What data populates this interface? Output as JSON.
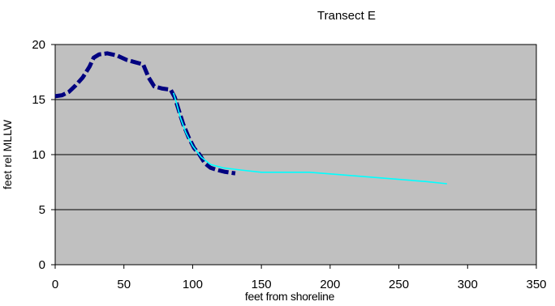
{
  "chart_data": {
    "type": "line",
    "title": "Transect E",
    "xlabel": "feet from shoreline",
    "ylabel": "feet rel MLLW",
    "xlim": [
      0,
      350
    ],
    "ylim": [
      0,
      20
    ],
    "x_ticks": [
      "0",
      "50",
      "100",
      "150",
      "200",
      "250",
      "300",
      "350"
    ],
    "y_ticks": [
      "0",
      "5",
      "10",
      "15",
      "20"
    ],
    "grid": "horizontal",
    "plot_background": "#c0c0c0",
    "legend": "none",
    "series": [
      {
        "style": "dashed-thick",
        "color": "#000080",
        "points": [
          [
            0,
            15.3
          ],
          [
            5,
            15.4
          ],
          [
            10,
            15.7
          ],
          [
            15,
            16.3
          ],
          [
            20,
            17.0
          ],
          [
            25,
            18.0
          ],
          [
            28,
            18.8
          ],
          [
            32,
            19.1
          ],
          [
            38,
            19.2
          ],
          [
            45,
            19.0
          ],
          [
            52,
            18.6
          ],
          [
            58,
            18.4
          ],
          [
            64,
            18.2
          ],
          [
            68,
            17.0
          ],
          [
            72,
            16.2
          ],
          [
            78,
            16.0
          ],
          [
            84,
            15.9
          ],
          [
            87,
            15.2
          ],
          [
            90,
            14.0
          ],
          [
            93,
            12.8
          ],
          [
            97,
            11.6
          ],
          [
            101,
            10.6
          ],
          [
            105,
            10.0
          ],
          [
            109,
            9.2
          ],
          [
            113,
            8.8
          ],
          [
            118,
            8.6
          ],
          [
            123,
            8.45
          ],
          [
            128,
            8.35
          ],
          [
            131,
            8.3
          ]
        ]
      },
      {
        "style": "solid-thin",
        "color": "#00ffff",
        "points": [
          [
            86,
            15.6
          ],
          [
            88,
            14.8
          ],
          [
            91,
            13.4
          ],
          [
            95,
            12.0
          ],
          [
            100,
            10.8
          ],
          [
            106,
            9.8
          ],
          [
            113,
            9.1
          ],
          [
            122,
            8.8
          ],
          [
            135,
            8.6
          ],
          [
            150,
            8.4
          ],
          [
            170,
            8.4
          ],
          [
            185,
            8.4
          ],
          [
            200,
            8.25
          ],
          [
            225,
            8.0
          ],
          [
            250,
            7.75
          ],
          [
            270,
            7.55
          ],
          [
            285,
            7.35
          ]
        ]
      }
    ]
  }
}
